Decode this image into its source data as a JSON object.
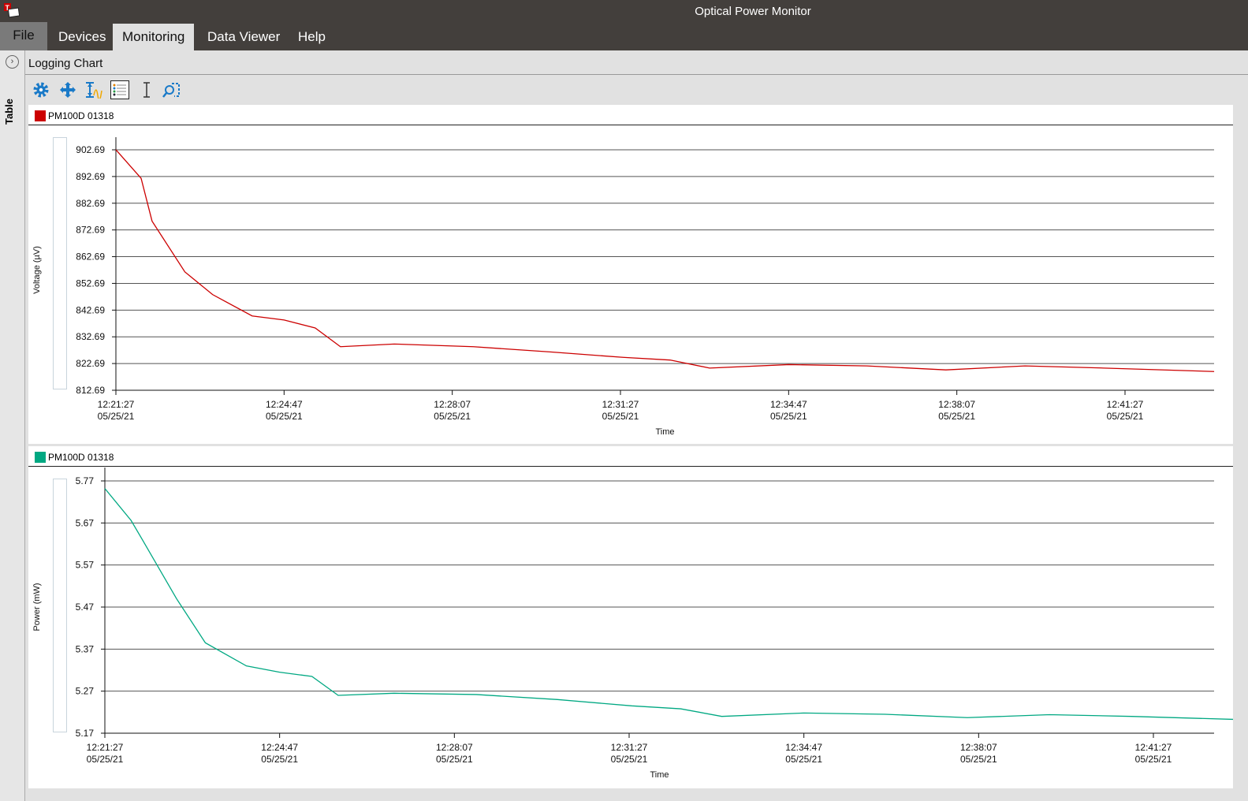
{
  "window": {
    "title": "Optical Power Monitor"
  },
  "menu": [
    {
      "label": "File"
    },
    {
      "label": "Devices"
    },
    {
      "label": "Monitoring"
    },
    {
      "label": "Data Viewer"
    },
    {
      "label": "Help"
    }
  ],
  "side_tab": {
    "label": "Table"
  },
  "panel": {
    "title": "Logging Chart"
  },
  "toolbar": [
    "gear-icon",
    "pan-icon",
    "autoscale-y-icon",
    "legend-list-icon",
    "cursor-icon",
    "zoom-region-icon"
  ],
  "chart_data": [
    {
      "type": "line",
      "legend": "PM100D 01318",
      "color": "#cc0000",
      "ylabel": "Voltage (µV)",
      "xlabel": "Time",
      "ylim": [
        812.69,
        902.69
      ],
      "yticks": [
        "902.69",
        "892.69",
        "882.69",
        "872.69",
        "862.69",
        "852.69",
        "842.69",
        "832.69",
        "822.69",
        "812.69"
      ],
      "xticks": [
        [
          "12:21:27",
          "05/25/21"
        ],
        [
          "12:24:47",
          "05/25/21"
        ],
        [
          "12:28:07",
          "05/25/21"
        ],
        [
          "12:31:27",
          "05/25/21"
        ],
        [
          "12:34:47",
          "05/25/21"
        ],
        [
          "12:38:07",
          "05/25/21"
        ],
        [
          "12:41:27",
          "05/25/21"
        ]
      ],
      "grid": true,
      "points": [
        [
          "12:21:27",
          902.7
        ],
        [
          "12:21:57",
          892.0
        ],
        [
          "12:22:10",
          876.0
        ],
        [
          "12:22:49",
          857.0
        ],
        [
          "12:23:22",
          848.5
        ],
        [
          "12:24:09",
          840.5
        ],
        [
          "12:24:47",
          839.0
        ],
        [
          "12:25:24",
          836.0
        ],
        [
          "12:25:54",
          829.0
        ],
        [
          "12:26:58",
          830.0
        ],
        [
          "12:28:32",
          829.0
        ],
        [
          "12:30:05",
          827.0
        ],
        [
          "12:31:30",
          825.0
        ],
        [
          "12:32:26",
          824.0
        ],
        [
          "12:33:13",
          821.0
        ],
        [
          "12:34:47",
          822.3
        ],
        [
          "12:36:20",
          821.8
        ],
        [
          "12:37:54",
          820.3
        ],
        [
          "12:39:28",
          821.8
        ],
        [
          "12:41:02",
          821.0
        ],
        [
          "12:43:13",
          819.7
        ]
      ]
    },
    {
      "type": "line",
      "legend": "PM100D 01318",
      "color": "#00a882",
      "ylabel": "Power (mW)",
      "xlabel": "Time",
      "ylim": [
        5.17,
        5.77
      ],
      "yticks": [
        "5.77",
        "5.67",
        "5.57",
        "5.47",
        "5.37",
        "5.27",
        "5.17"
      ],
      "xticks": [
        [
          "12:21:27",
          "05/25/21"
        ],
        [
          "12:24:47",
          "05/25/21"
        ],
        [
          "12:28:07",
          "05/25/21"
        ],
        [
          "12:31:27",
          "05/25/21"
        ],
        [
          "12:34:47",
          "05/25/21"
        ],
        [
          "12:38:07",
          "05/25/21"
        ],
        [
          "12:41:27",
          "05/25/21"
        ]
      ],
      "grid": true,
      "points": [
        [
          "12:21:27",
          5.752
        ],
        [
          "12:21:57",
          5.676
        ],
        [
          "12:22:10",
          5.63
        ],
        [
          "12:22:49",
          5.49
        ],
        [
          "12:23:22",
          5.385
        ],
        [
          "12:24:09",
          5.33
        ],
        [
          "12:24:47",
          5.315
        ],
        [
          "12:25:24",
          5.305
        ],
        [
          "12:25:54",
          5.26
        ],
        [
          "12:26:58",
          5.265
        ],
        [
          "12:28:32",
          5.262
        ],
        [
          "12:30:05",
          5.25
        ],
        [
          "12:31:30",
          5.235
        ],
        [
          "12:32:26",
          5.228
        ],
        [
          "12:33:13",
          5.21
        ],
        [
          "12:34:47",
          5.218
        ],
        [
          "12:36:20",
          5.215
        ],
        [
          "12:37:54",
          5.207
        ],
        [
          "12:39:28",
          5.214
        ],
        [
          "12:41:02",
          5.21
        ],
        [
          "12:43:13",
          5.202
        ]
      ]
    }
  ]
}
